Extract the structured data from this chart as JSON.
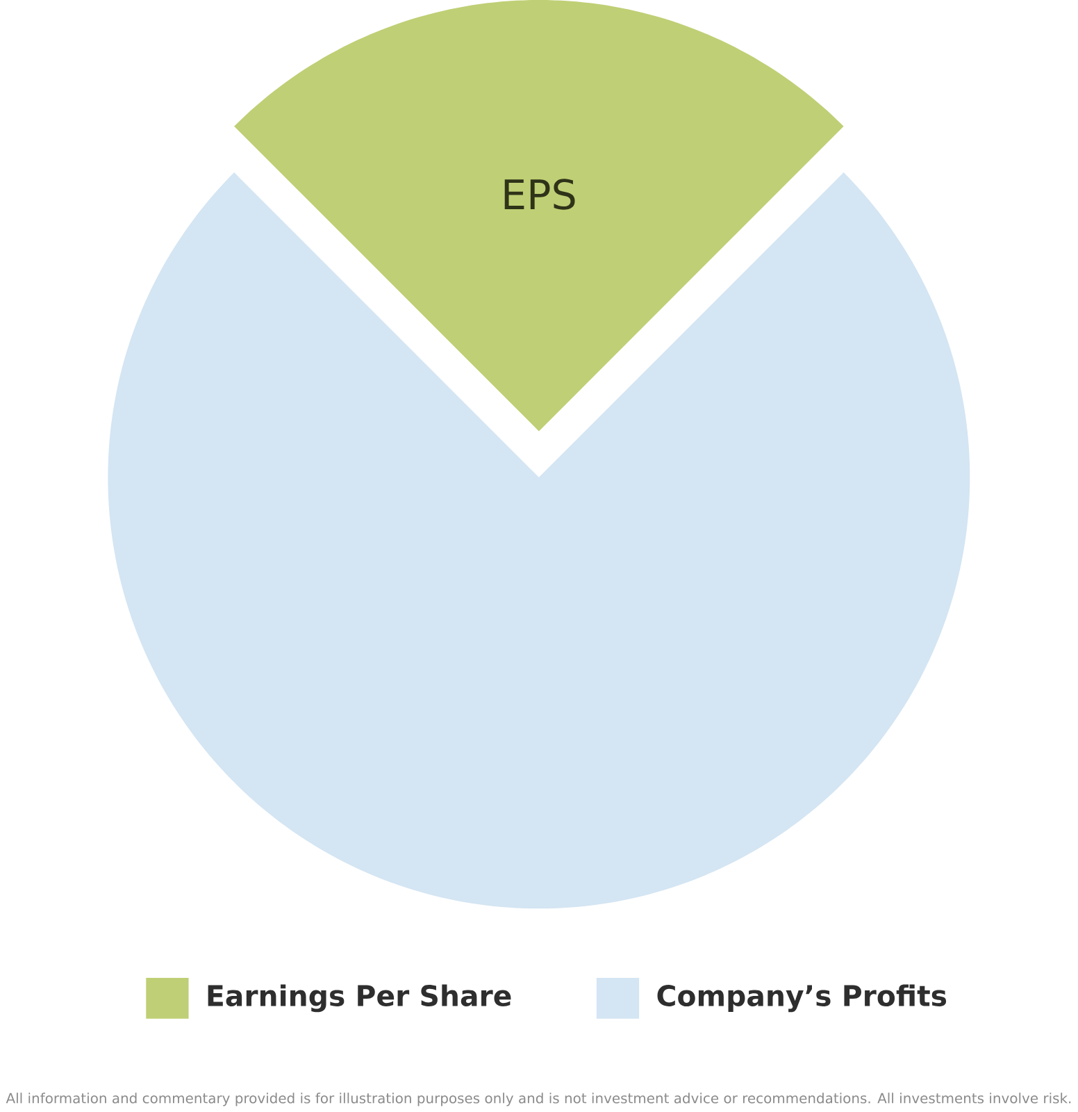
{
  "chart_data": {
    "type": "pie",
    "categories": [
      "Earnings Per Share",
      "Company’s Profits"
    ],
    "values": [
      25,
      75
    ],
    "colors": [
      "#bfcf75",
      "#d4e5f3"
    ],
    "legend": "bottom",
    "annotations": [
      "EPS",
      "All information and commentary provided is for illustration purposes only and is not investment advice or recommendations. All investments involve risk."
    ]
  }
}
